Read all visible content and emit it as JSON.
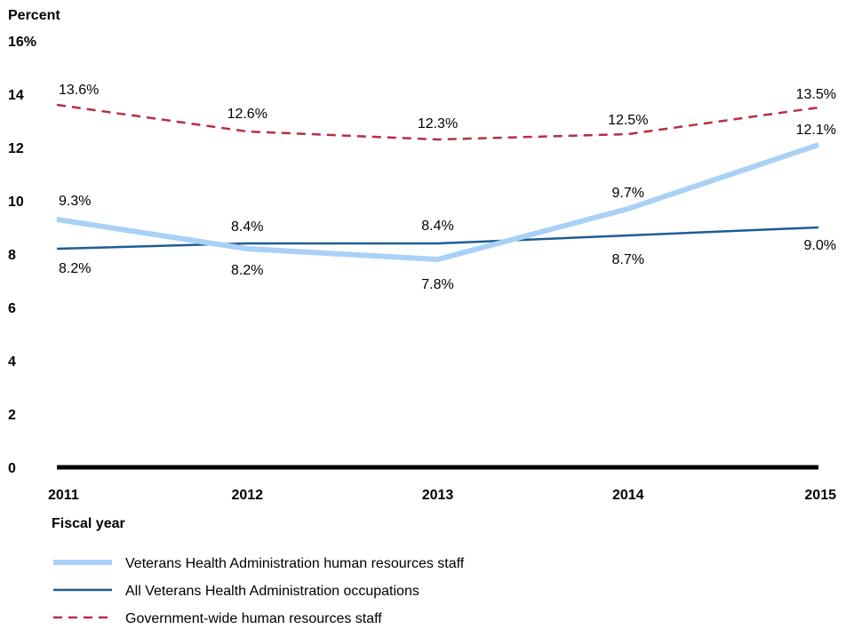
{
  "chart_data": {
    "type": "line",
    "ylabel": "Percent",
    "xlabel": "Fiscal year",
    "ylim": [
      0,
      16
    ],
    "y_ticks": [
      0,
      2,
      4,
      6,
      8,
      10,
      12,
      14,
      16
    ],
    "y_tick_labels": [
      "0",
      "2",
      "4",
      "6",
      "8",
      "10",
      "12",
      "14",
      "16%"
    ],
    "x": [
      "2011",
      "2012",
      "2013",
      "2014",
      "2015"
    ],
    "grid": false,
    "legend_position": "bottom-left",
    "series": [
      {
        "name": "Veterans Health Administration human resources staff",
        "values": [
          9.3,
          8.2,
          7.8,
          9.7,
          12.1
        ],
        "labels": [
          "9.3%",
          "8.2%",
          "7.8%",
          "9.7%",
          "12.1%"
        ],
        "color": "#a9d1f7",
        "style": "solid-thick"
      },
      {
        "name": "All Veterans Health Administration occupations",
        "values": [
          8.2,
          8.4,
          8.4,
          8.7,
          9.0
        ],
        "labels": [
          "8.2%",
          "8.4%",
          "8.4%",
          "8.7%",
          "9.0%"
        ],
        "color": "#1f5c94",
        "style": "solid-thin"
      },
      {
        "name": "Government-wide human resources staff",
        "values": [
          13.6,
          12.6,
          12.3,
          12.5,
          13.5
        ],
        "labels": [
          "13.6%",
          "12.6%",
          "12.3%",
          "12.5%",
          "13.5%"
        ],
        "color": "#b5303f",
        "style": "dashed"
      }
    ]
  }
}
